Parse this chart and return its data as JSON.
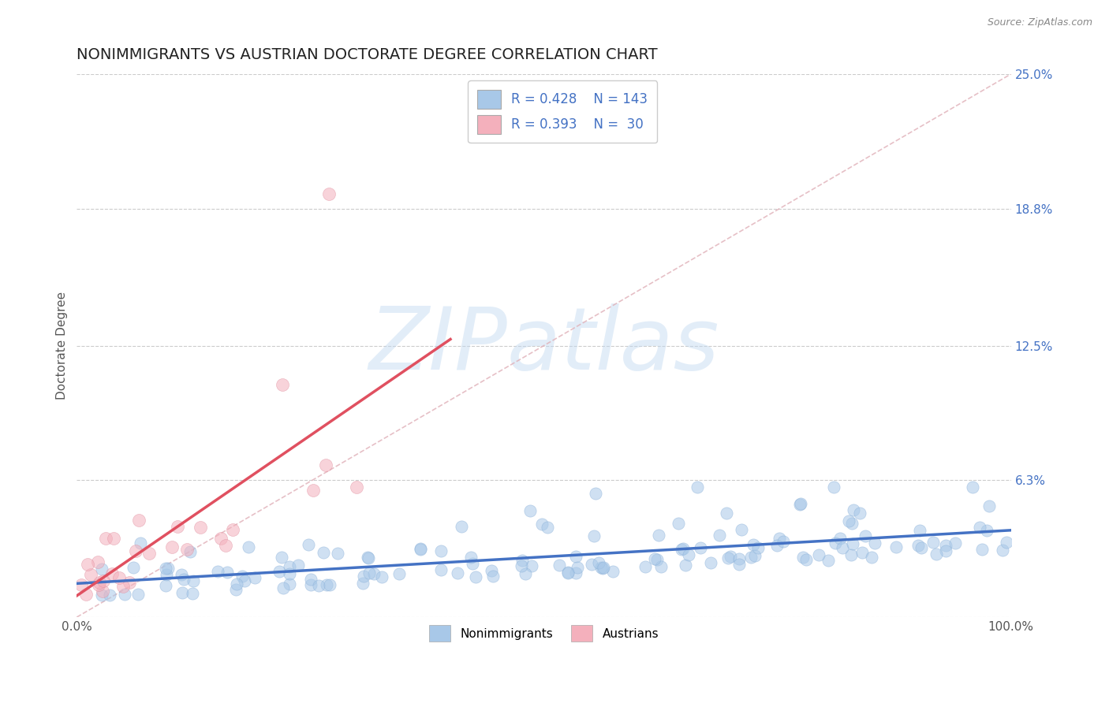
{
  "title": "NONIMMIGRANTS VS AUSTRIAN DOCTORATE DEGREE CORRELATION CHART",
  "source": "Source: ZipAtlas.com",
  "ylabel": "Doctorate Degree",
  "watermark": "ZIPatlas",
  "legend_labels": [
    "Nonimmigrants",
    "Austrians"
  ],
  "r_nonimmigrants": 0.428,
  "n_nonimmigrants": 143,
  "r_austrians": 0.393,
  "n_austrians": 30,
  "color_nonimmigrants": "#a8c8e8",
  "color_austrians": "#f4b0bc",
  "color_nonimmigrants_line": "#4472c4",
  "color_austrians_line": "#e05060",
  "color_diag_line": "#e0b0b8",
  "right_ytick_vals": [
    0.0,
    0.063,
    0.125,
    0.188,
    0.25
  ],
  "right_yticklabels": [
    "",
    "6.3%",
    "12.5%",
    "18.8%",
    "25.0%"
  ],
  "xlim": [
    0.0,
    100.0
  ],
  "ylim": [
    0.0,
    0.25
  ],
  "title_fontsize": 14,
  "axis_label_fontsize": 11,
  "tick_label_fontsize": 11,
  "scatter_alpha": 0.55,
  "scatter_size": 120,
  "seed": 99,
  "grid_color": "#cccccc",
  "title_color": "#222222",
  "source_color": "#888888",
  "right_tick_color": "#4472c4",
  "left_tick_color": "#555555"
}
